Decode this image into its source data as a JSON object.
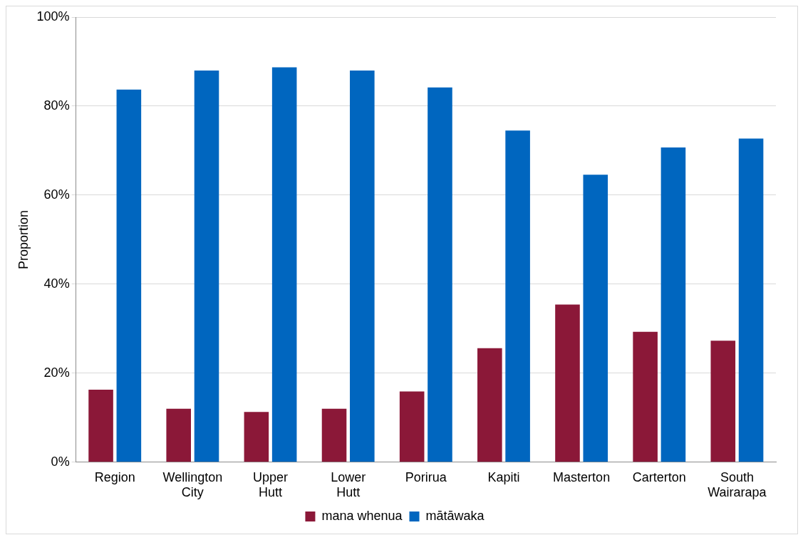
{
  "chart_data": {
    "type": "bar",
    "ylabel": "Proportion",
    "categories": [
      "Region",
      "Wellington City",
      "Upper Hutt",
      "Lower Hutt",
      "Porirua",
      "Kapiti",
      "Masterton",
      "Carterton",
      "South Wairarapa"
    ],
    "series": [
      {
        "name": "mana whenua",
        "color": "#8b1838",
        "values": [
          16.3,
          12,
          11.3,
          12,
          15.9,
          25.6,
          35.4,
          29.3,
          27.3
        ]
      },
      {
        "name": "mātāwaka",
        "color": "#0066bf",
        "values": [
          83.7,
          88,
          88.7,
          88,
          84.2,
          74.5,
          64.6,
          70.7,
          72.7
        ]
      }
    ],
    "ylim": [
      0,
      100
    ],
    "yticks": [
      {
        "value": 0,
        "label": "0%"
      },
      {
        "value": 20,
        "label": "20%"
      },
      {
        "value": 40,
        "label": "40%"
      },
      {
        "value": 60,
        "label": "60%"
      },
      {
        "value": 80,
        "label": "80%"
      },
      {
        "value": 100,
        "label": "100%"
      }
    ],
    "grid": "y",
    "legend": "bottom"
  }
}
